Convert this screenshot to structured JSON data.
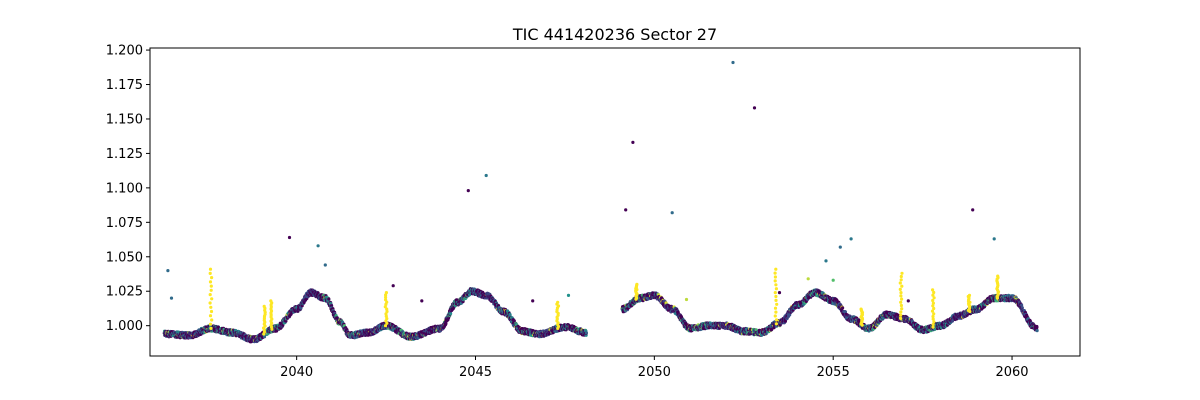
{
  "chart_data": {
    "type": "scatter",
    "title": "TIC 441420236 Sector 27",
    "xlabel": "",
    "ylabel": "",
    "xlim": [
      2035.9,
      2061.9
    ],
    "ylim": [
      0.978,
      1.2015
    ],
    "xticks": [
      2040,
      2045,
      2050,
      2055,
      2060
    ],
    "xtick_labels": [
      "2040",
      "2045",
      "2050",
      "2055",
      "2060"
    ],
    "yticks": [
      1.0,
      1.025,
      1.05,
      1.075,
      1.1,
      1.125,
      1.15,
      1.175,
      1.2
    ],
    "ytick_labels": [
      "1.000",
      "1.025",
      "1.050",
      "1.075",
      "1.100",
      "1.125",
      "1.150",
      "1.175",
      "1.200"
    ],
    "grid": false,
    "colormap": "viridis",
    "colormap_stops": [
      "#440154",
      "#3b528b",
      "#21918c",
      "#5ec962",
      "#fde725"
    ],
    "light_curve_trend": {
      "segments": [
        [
          2036.3,
          2048.1
        ],
        [
          2049.1,
          2060.7
        ]
      ],
      "x": [
        2036.3,
        2037.0,
        2037.6,
        2038.2,
        2038.8,
        2039.4,
        2040.0,
        2040.4,
        2040.8,
        2041.2,
        2041.5,
        2042.0,
        2042.5,
        2043.2,
        2044.0,
        2044.5,
        2044.9,
        2045.3,
        2045.8,
        2046.3,
        2046.8,
        2047.5,
        2048.1,
        2049.1,
        2049.6,
        2050.0,
        2050.5,
        2051.0,
        2051.5,
        2052.0,
        2052.5,
        2053.0,
        2053.5,
        2054.0,
        2054.5,
        2055.0,
        2055.5,
        2056.0,
        2056.5,
        2057.0,
        2057.5,
        2058.0,
        2058.5,
        2059.0,
        2059.5,
        2060.0,
        2060.7
      ],
      "y": [
        0.994,
        0.993,
        0.998,
        0.995,
        0.99,
        0.998,
        1.012,
        1.024,
        1.02,
        1.003,
        0.993,
        0.995,
        1.0,
        0.992,
        0.998,
        1.017,
        1.025,
        1.022,
        1.01,
        0.996,
        0.994,
        0.999,
        0.995,
        1.012,
        1.02,
        1.022,
        1.012,
        0.998,
        1.0,
        1.0,
        0.996,
        0.995,
        1.002,
        1.015,
        1.024,
        1.018,
        1.005,
        0.998,
        1.008,
        1.005,
        0.997,
        1.0,
        1.007,
        1.012,
        1.02,
        1.02,
        0.998
      ]
    },
    "outliers": [
      {
        "x": 2036.4,
        "y": 1.04,
        "c": 0.35
      },
      {
        "x": 2036.5,
        "y": 1.02,
        "c": 0.35
      },
      {
        "x": 2039.8,
        "y": 1.064,
        "c": 0.0
      },
      {
        "x": 2040.6,
        "y": 1.058,
        "c": 0.4
      },
      {
        "x": 2040.8,
        "y": 1.044,
        "c": 0.35
      },
      {
        "x": 2042.7,
        "y": 1.029,
        "c": 0.0
      },
      {
        "x": 2043.5,
        "y": 1.018,
        "c": 0.0
      },
      {
        "x": 2044.8,
        "y": 1.098,
        "c": 0.0
      },
      {
        "x": 2045.3,
        "y": 1.109,
        "c": 0.4
      },
      {
        "x": 2046.6,
        "y": 1.018,
        "c": 0.0
      },
      {
        "x": 2047.6,
        "y": 1.022,
        "c": 0.5
      },
      {
        "x": 2049.2,
        "y": 1.084,
        "c": 0.0
      },
      {
        "x": 2049.4,
        "y": 1.133,
        "c": 0.0
      },
      {
        "x": 2050.5,
        "y": 1.082,
        "c": 0.35
      },
      {
        "x": 2052.2,
        "y": 1.191,
        "c": 0.35
      },
      {
        "x": 2052.8,
        "y": 1.158,
        "c": 0.0
      },
      {
        "x": 2053.5,
        "y": 1.024,
        "c": 0.0
      },
      {
        "x": 2054.3,
        "y": 1.034,
        "c": 0.9
      },
      {
        "x": 2054.8,
        "y": 1.047,
        "c": 0.4
      },
      {
        "x": 2055.2,
        "y": 1.057,
        "c": 0.35
      },
      {
        "x": 2055.5,
        "y": 1.063,
        "c": 0.4
      },
      {
        "x": 2055.0,
        "y": 1.033,
        "c": 0.7
      },
      {
        "x": 2057.1,
        "y": 1.018,
        "c": 0.0
      },
      {
        "x": 2058.9,
        "y": 1.084,
        "c": 0.0
      },
      {
        "x": 2059.5,
        "y": 1.063,
        "c": 0.4
      },
      {
        "x": 2049.8,
        "y": 1.022,
        "c": 0.0
      },
      {
        "x": 2050.9,
        "y": 1.019,
        "c": 0.9
      }
    ],
    "flare_spikes": [
      {
        "x": 2037.6,
        "top": 1.041,
        "c": 1.0
      },
      {
        "x": 2039.1,
        "top": 1.014,
        "c": 1.0
      },
      {
        "x": 2039.3,
        "top": 1.018,
        "c": 1.0
      },
      {
        "x": 2042.5,
        "top": 1.024,
        "c": 1.0
      },
      {
        "x": 2047.3,
        "top": 1.017,
        "c": 1.0
      },
      {
        "x": 2049.5,
        "top": 1.03,
        "c": 1.0
      },
      {
        "x": 2053.4,
        "top": 1.041,
        "c": 1.0
      },
      {
        "x": 2055.8,
        "top": 1.012,
        "c": 1.0
      },
      {
        "x": 2056.9,
        "top": 1.038,
        "c": 1.0
      },
      {
        "x": 2057.8,
        "top": 1.026,
        "c": 1.0
      },
      {
        "x": 2058.8,
        "top": 1.022,
        "c": 1.0
      },
      {
        "x": 2059.6,
        "top": 1.036,
        "c": 1.0
      }
    ]
  }
}
